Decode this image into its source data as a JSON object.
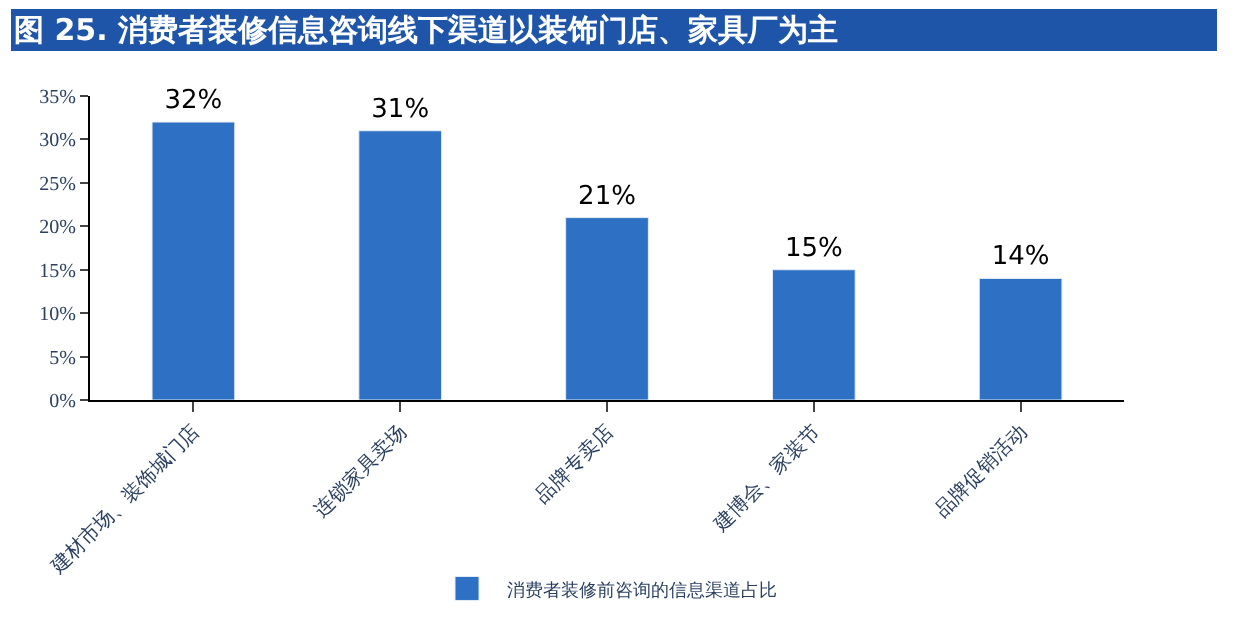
{
  "chart_data": {
    "type": "bar",
    "title": "图 25. 消费者装修信息咨询线下渠道以装饰门店、家具厂为主",
    "categories": [
      "建材市场、装饰城门店",
      "连锁家具卖场",
      "品牌专卖店",
      "建博会、家装节",
      "品牌促销活动"
    ],
    "series": [
      {
        "name": "消费者装修前咨询的信息渠道占比",
        "color": "#2e70c4",
        "values": [
          32,
          31,
          21,
          15,
          14
        ],
        "value_labels": [
          "32%",
          "31%",
          "21%",
          "15%",
          "14%"
        ]
      }
    ],
    "ylim": [
      0,
      35
    ],
    "yticks": [
      {
        "value": 0,
        "label": "0%"
      },
      {
        "value": 5,
        "label": "5%"
      },
      {
        "value": 10,
        "label": "10%"
      },
      {
        "value": 15,
        "label": "15%"
      },
      {
        "value": 20,
        "label": "20%"
      },
      {
        "value": 25,
        "label": "25%"
      },
      {
        "value": 30,
        "label": "30%"
      },
      {
        "value": 35,
        "label": "35%"
      }
    ],
    "legend": "bottom"
  }
}
